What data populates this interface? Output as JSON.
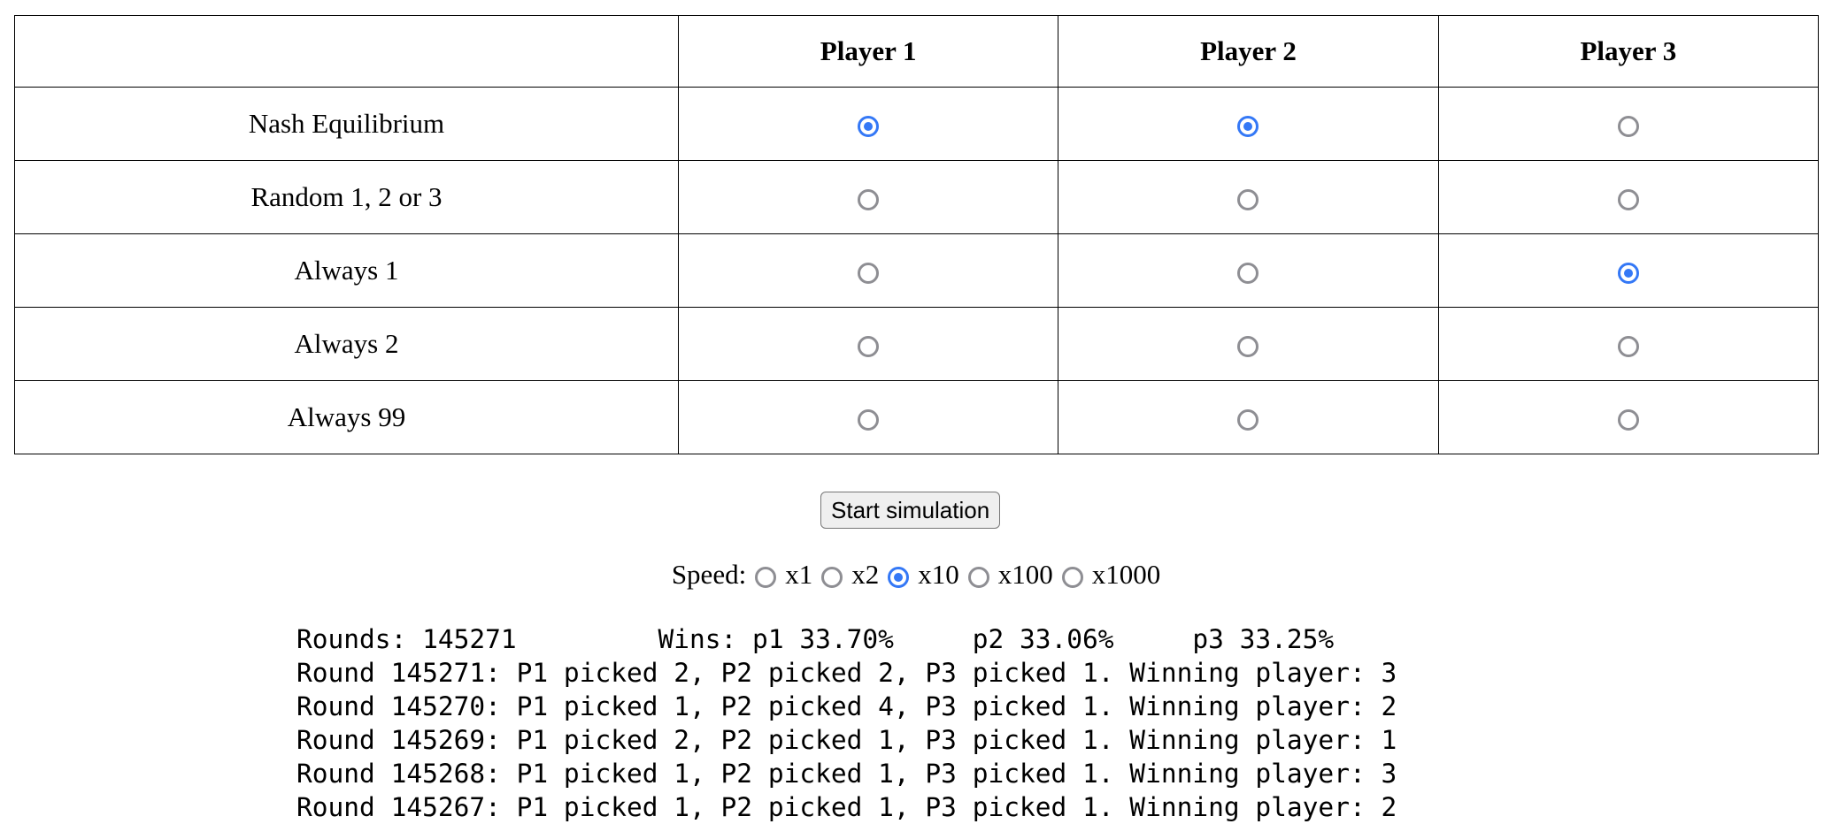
{
  "table": {
    "columns": [
      "Player 1",
      "Player 2",
      "Player 3"
    ],
    "rows": [
      {
        "label": "Nash Equilibrium",
        "selected": [
          true,
          true,
          false
        ]
      },
      {
        "label": "Random 1, 2 or 3",
        "selected": [
          false,
          false,
          false
        ]
      },
      {
        "label": "Always 1",
        "selected": [
          false,
          false,
          true
        ]
      },
      {
        "label": "Always 2",
        "selected": [
          false,
          false,
          false
        ]
      },
      {
        "label": "Always 99",
        "selected": [
          false,
          false,
          false
        ]
      }
    ]
  },
  "button": "Start simulation",
  "speed": {
    "label": "Speed:",
    "options": [
      "x1",
      "x2",
      "x10",
      "x100",
      "x1000"
    ],
    "selected": "x10"
  },
  "log": [
    "Rounds: 145271         Wins: p1 33.70%     p2 33.06%     p3 33.25%",
    "Round 145271: P1 picked 2, P2 picked 2, P3 picked 1. Winning player: 3",
    "Round 145270: P1 picked 1, P2 picked 4, P3 picked 1. Winning player: 2",
    "Round 145269: P1 picked 2, P2 picked 1, P3 picked 1. Winning player: 1",
    "Round 145268: P1 picked 1, P2 picked 1, P3 picked 1. Winning player: 3",
    "Round 145267: P1 picked 1, P2 picked 1, P3 picked 1. Winning player: 2"
  ]
}
